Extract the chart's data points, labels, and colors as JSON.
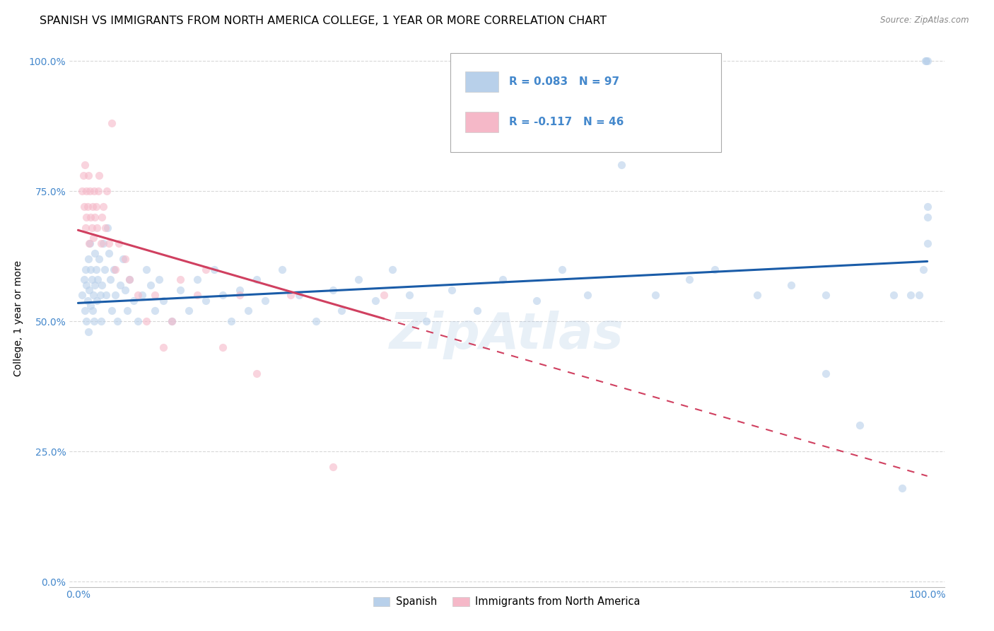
{
  "title": "SPANISH VS IMMIGRANTS FROM NORTH AMERICA COLLEGE, 1 YEAR OR MORE CORRELATION CHART",
  "source": "Source: ZipAtlas.com",
  "ylabel": "College, 1 year or more",
  "legend_labels": [
    "Spanish",
    "Immigrants from North America"
  ],
  "R_blue": 0.083,
  "N_blue": 97,
  "R_pink": -0.117,
  "N_pink": 46,
  "blue_color": "#b8d0ea",
  "pink_color": "#f5b8c8",
  "blue_line_color": "#1a5ca8",
  "pink_line_color": "#d04060",
  "tick_color": "#4488cc",
  "grid_color": "#d8d8d8",
  "background_color": "#ffffff",
  "watermark": "ZipAtlas",
  "title_fontsize": 11.5,
  "axis_label_fontsize": 10,
  "tick_fontsize": 10,
  "marker_size": 65,
  "alpha": 0.6,
  "ytick_positions": [
    0.0,
    0.25,
    0.5,
    0.75,
    1.0
  ],
  "ytick_labels": [
    "0.0%",
    "25.0%",
    "50.0%",
    "75.0%",
    "100.0%"
  ],
  "xtick_positions": [
    0.0,
    1.0
  ],
  "xtick_labels": [
    "0.0%",
    "100.0%"
  ],
  "blue_x": [
    0.005,
    0.007,
    0.008,
    0.009,
    0.01,
    0.01,
    0.011,
    0.012,
    0.012,
    0.013,
    0.014,
    0.015,
    0.015,
    0.016,
    0.017,
    0.018,
    0.019,
    0.02,
    0.02,
    0.021,
    0.022,
    0.023,
    0.025,
    0.026,
    0.027,
    0.028,
    0.03,
    0.031,
    0.033,
    0.035,
    0.036,
    0.038,
    0.04,
    0.042,
    0.044,
    0.046,
    0.05,
    0.053,
    0.055,
    0.058,
    0.06,
    0.065,
    0.07,
    0.075,
    0.08,
    0.085,
    0.09,
    0.095,
    0.1,
    0.11,
    0.12,
    0.13,
    0.14,
    0.15,
    0.16,
    0.17,
    0.18,
    0.19,
    0.2,
    0.21,
    0.22,
    0.24,
    0.26,
    0.28,
    0.3,
    0.31,
    0.33,
    0.35,
    0.37,
    0.39,
    0.41,
    0.44,
    0.47,
    0.5,
    0.54,
    0.57,
    0.6,
    0.64,
    0.68,
    0.72,
    0.75,
    0.8,
    0.84,
    0.88,
    0.88,
    0.92,
    0.96,
    0.97,
    0.98,
    0.99,
    0.995,
    0.998,
    0.999,
    1.0,
    1.0,
    1.0,
    1.0
  ],
  "blue_y": [
    0.55,
    0.58,
    0.52,
    0.6,
    0.57,
    0.5,
    0.54,
    0.62,
    0.48,
    0.56,
    0.65,
    0.6,
    0.53,
    0.58,
    0.52,
    0.55,
    0.5,
    0.63,
    0.57,
    0.6,
    0.54,
    0.58,
    0.62,
    0.55,
    0.5,
    0.57,
    0.65,
    0.6,
    0.55,
    0.68,
    0.63,
    0.58,
    0.52,
    0.6,
    0.55,
    0.5,
    0.57,
    0.62,
    0.56,
    0.52,
    0.58,
    0.54,
    0.5,
    0.55,
    0.6,
    0.57,
    0.52,
    0.58,
    0.54,
    0.5,
    0.56,
    0.52,
    0.58,
    0.54,
    0.6,
    0.55,
    0.5,
    0.56,
    0.52,
    0.58,
    0.54,
    0.6,
    0.55,
    0.5,
    0.56,
    0.52,
    0.58,
    0.54,
    0.6,
    0.55,
    0.5,
    0.56,
    0.52,
    0.58,
    0.54,
    0.6,
    0.55,
    0.8,
    0.55,
    0.58,
    0.6,
    0.55,
    0.57,
    0.55,
    0.4,
    0.3,
    0.55,
    0.18,
    0.55,
    0.55,
    0.6,
    1.0,
    1.0,
    1.0,
    0.7,
    0.65,
    0.72
  ],
  "pink_x": [
    0.005,
    0.006,
    0.007,
    0.008,
    0.009,
    0.01,
    0.01,
    0.011,
    0.012,
    0.013,
    0.014,
    0.015,
    0.016,
    0.017,
    0.018,
    0.019,
    0.02,
    0.021,
    0.022,
    0.024,
    0.025,
    0.027,
    0.028,
    0.03,
    0.032,
    0.034,
    0.036,
    0.04,
    0.044,
    0.048,
    0.055,
    0.06,
    0.07,
    0.08,
    0.09,
    0.1,
    0.11,
    0.12,
    0.14,
    0.15,
    0.17,
    0.19,
    0.21,
    0.25,
    0.3,
    0.36
  ],
  "pink_y": [
    0.75,
    0.78,
    0.72,
    0.8,
    0.68,
    0.75,
    0.7,
    0.72,
    0.78,
    0.65,
    0.75,
    0.7,
    0.68,
    0.72,
    0.66,
    0.75,
    0.7,
    0.72,
    0.68,
    0.75,
    0.78,
    0.65,
    0.7,
    0.72,
    0.68,
    0.75,
    0.65,
    0.88,
    0.6,
    0.65,
    0.62,
    0.58,
    0.55,
    0.5,
    0.55,
    0.45,
    0.5,
    0.58,
    0.55,
    0.6,
    0.45,
    0.55,
    0.4,
    0.55,
    0.22,
    0.55
  ],
  "pink_line_solid_end": 0.36,
  "blue_line_start_y": 0.535,
  "blue_line_end_y": 0.615,
  "pink_line_start_y": 0.675,
  "pink_line_end_y": 0.505
}
